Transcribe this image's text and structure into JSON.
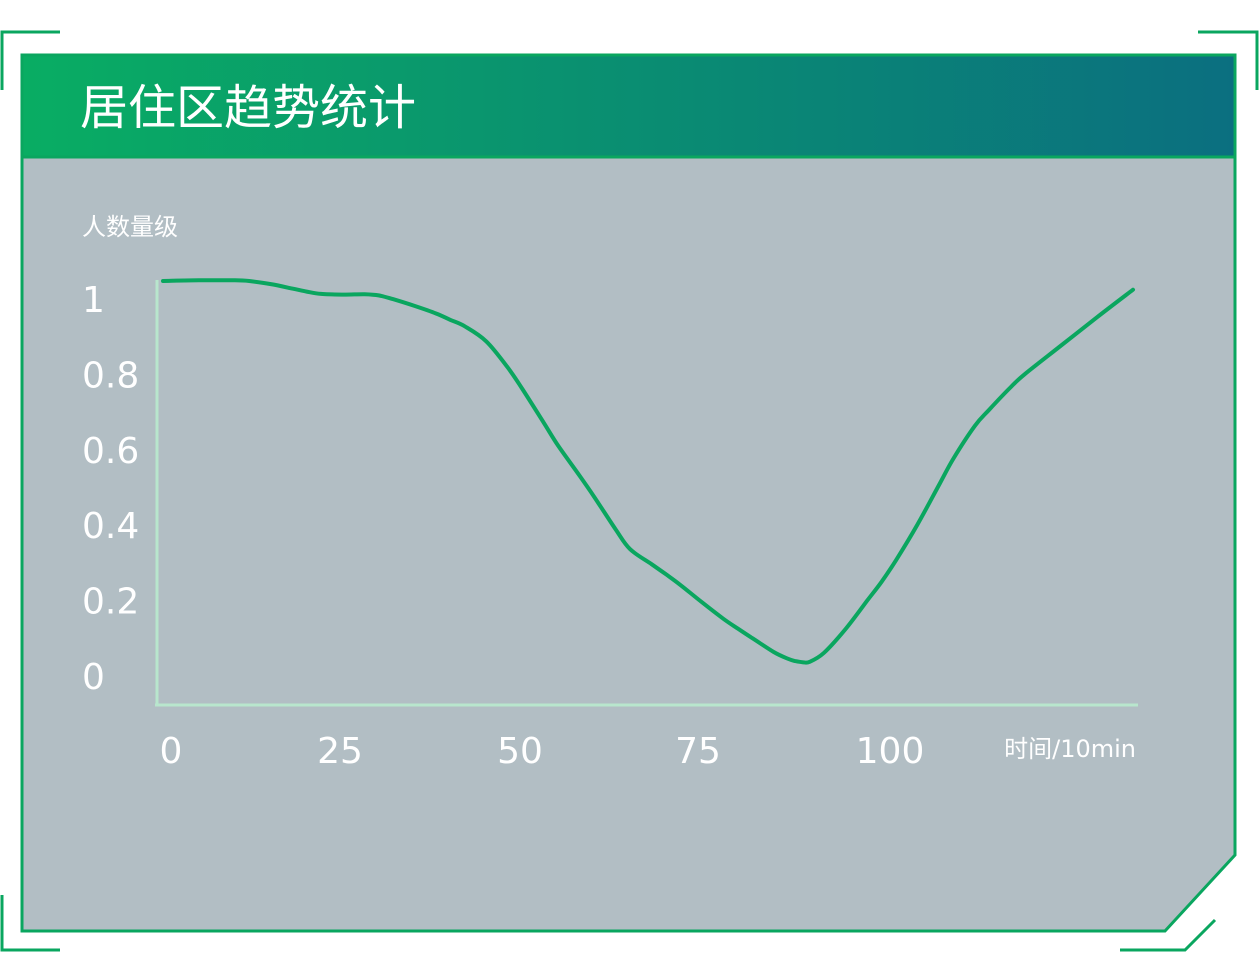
{
  "panel": {
    "title": "居住区趋势统计"
  },
  "colors": {
    "accent": "#0aa65f",
    "header_start": "#09ad63",
    "header_end": "#0b6f80",
    "panel_bg": "#b2bec4",
    "axis": "#b8e6cd",
    "text": "#ffffff"
  },
  "chart_data": {
    "type": "line",
    "ylabel": "人数量级",
    "xlabel": "时间/10min",
    "yticks": [
      "0",
      "0.2",
      "0.4",
      "0.6",
      "0.8",
      "1"
    ],
    "xticks": [
      "0",
      "25",
      "50",
      "75",
      "100"
    ],
    "ylim": [
      0,
      1
    ],
    "xlim": [
      0,
      135
    ],
    "x": [
      0,
      5,
      10,
      12,
      15,
      18,
      20,
      22,
      25,
      28,
      30,
      32,
      35,
      38,
      40,
      42,
      45,
      48,
      50,
      53,
      55,
      58,
      60,
      63,
      65,
      68,
      70,
      72,
      75,
      78,
      80,
      82,
      85,
      87,
      88,
      89,
      90,
      92,
      95,
      98,
      100,
      102,
      105,
      108,
      110,
      113,
      115,
      118,
      120,
      125,
      130,
      135
    ],
    "y": [
      1.045,
      1.047,
      1.047,
      1.045,
      1.037,
      1.025,
      1.017,
      1.011,
      1.009,
      1.01,
      1.007,
      0.997,
      0.979,
      0.959,
      0.942,
      0.925,
      0.885,
      0.815,
      0.759,
      0.669,
      0.608,
      0.528,
      0.473,
      0.386,
      0.334,
      0.294,
      0.267,
      0.239,
      0.193,
      0.149,
      0.123,
      0.098,
      0.061,
      0.043,
      0.037,
      0.034,
      0.035,
      0.059,
      0.122,
      0.197,
      0.247,
      0.304,
      0.399,
      0.504,
      0.574,
      0.661,
      0.704,
      0.764,
      0.799,
      0.874,
      0.949,
      1.022
    ],
    "series": [
      {
        "values_ref": "y"
      }
    ],
    "grid": false,
    "legend": "none"
  }
}
